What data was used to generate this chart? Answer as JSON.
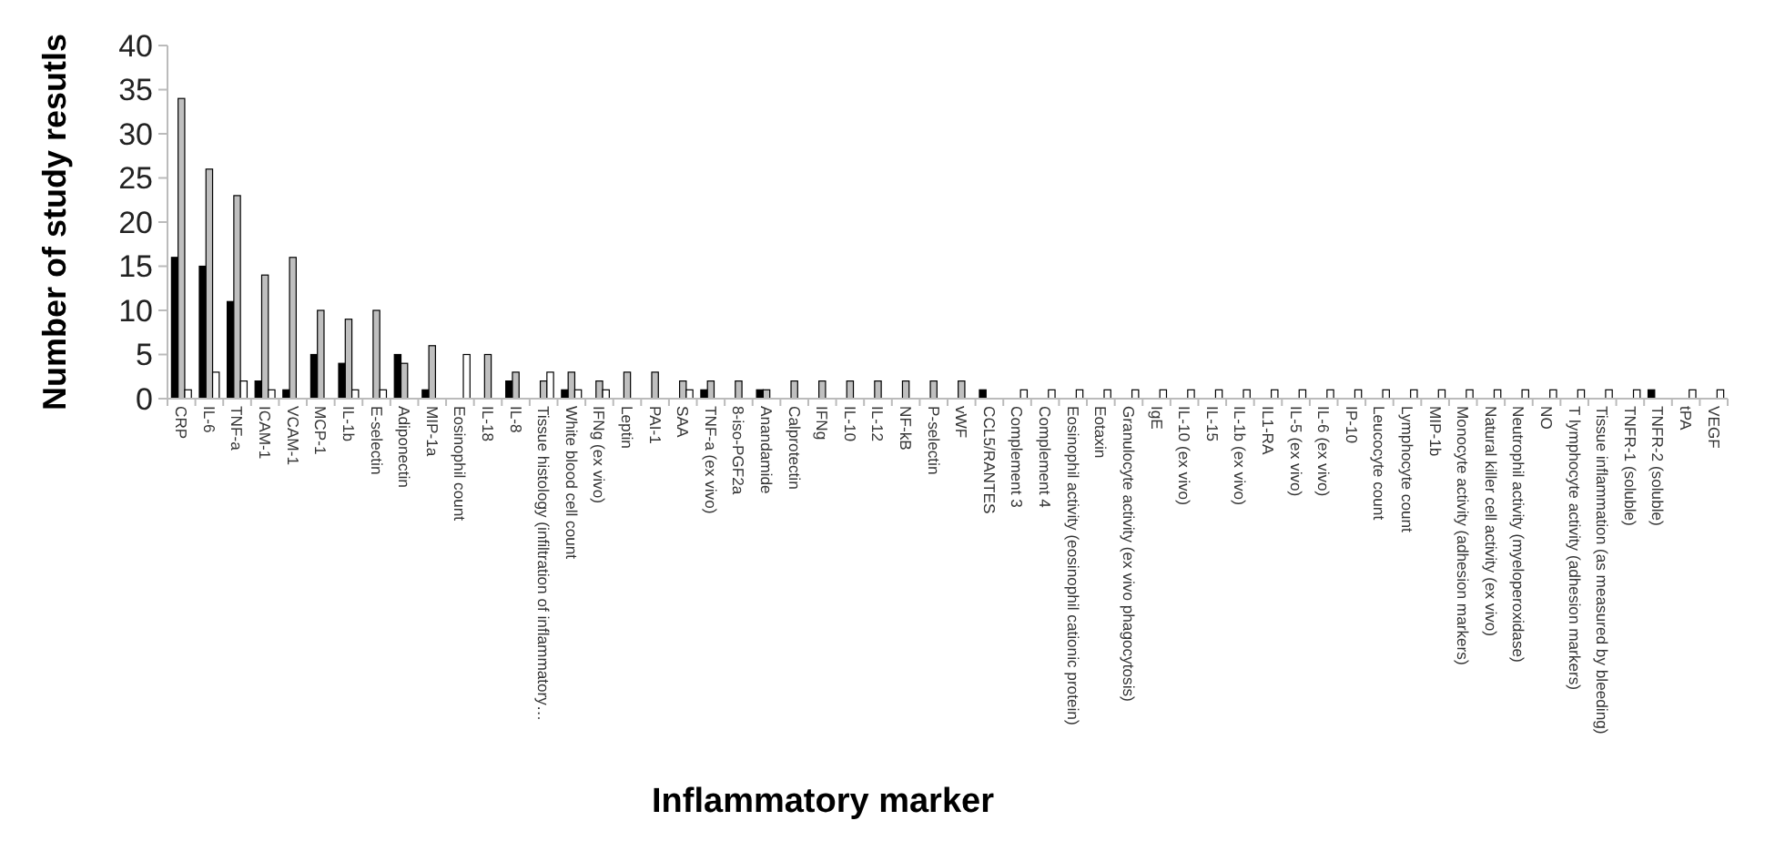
{
  "chart_data": {
    "type": "bar",
    "xlabel": "Inflammatory marker",
    "ylabel": "Number of study resutls",
    "categories": [
      "CRP",
      "IL-6",
      "TNF-a",
      "ICAM-1",
      "VCAM-1",
      "MCP-1",
      "IL-1b",
      "E-selectin",
      "Adiponectin",
      "MIP-1a",
      "Eosinophil count",
      "IL-18",
      "IL-8",
      "Tissue histology (infiltration of inflammatory…",
      "White blood cell count",
      "IFNg (ex vivo)",
      "Leptin",
      "PAI-1",
      "SAA",
      "TNF-a (ex vivo)",
      "8-iso-PGF2a",
      "Anandamide",
      "Calprotectin",
      "IFNg",
      "IL-10",
      "IL-12",
      "NF-kB",
      "P-selectin",
      "vWF",
      "CCL5/RANTES",
      "Complement 3",
      "Complement 4",
      "Eosinophil activity (eosinophil cationic protein)",
      "Eotaxin",
      "Granulocyte activity (ex vivo phagocytosis)",
      "IgE",
      "IL-10 (ex vivo)",
      "IL-15",
      "IL-1b (ex vivo)",
      "IL1-RA",
      "IL-5 (ex vivo)",
      "IL-6 (ex vivo)",
      "IP-10",
      "Leucocyte count",
      "Lymphocyte count",
      "MIP-1b",
      "Monocyte activity (adhesion markers)",
      "Natural killer cell activity (ex vivo)",
      "Neutrophil activity (myeloperoxidase)",
      "NO",
      "T lymphocyte activity (adhesion markers)",
      "Tissue inflammation (as measured by bleeding)",
      "TNFR-1 (soluble)",
      "TNFR-2 (soluble)",
      "tPA",
      "VEGF"
    ],
    "series": [
      {
        "color": "#000000",
        "values": [
          16,
          15,
          11,
          2,
          1,
          5,
          4,
          0,
          5,
          1,
          0,
          0,
          2,
          0,
          1,
          0,
          0,
          0,
          0,
          1,
          0,
          1,
          0,
          0,
          0,
          0,
          0,
          0,
          0,
          1,
          0,
          0,
          0,
          0,
          0,
          0,
          0,
          0,
          0,
          0,
          0,
          0,
          0,
          0,
          0,
          0,
          0,
          0,
          0,
          0,
          0,
          0,
          0,
          1,
          0,
          0
        ]
      },
      {
        "color": "#bfbfbf",
        "values": [
          34,
          26,
          23,
          14,
          16,
          10,
          9,
          10,
          4,
          6,
          0,
          5,
          3,
          2,
          3,
          2,
          3,
          3,
          2,
          2,
          2,
          1,
          2,
          2,
          2,
          2,
          2,
          2,
          2,
          0,
          0,
          0,
          0,
          0,
          0,
          0,
          0,
          0,
          0,
          0,
          0,
          0,
          0,
          0,
          0,
          0,
          0,
          0,
          0,
          0,
          0,
          0,
          0,
          0,
          0,
          0
        ]
      },
      {
        "color": "#ffffff",
        "values": [
          1,
          3,
          2,
          1,
          0,
          0,
          1,
          1,
          0,
          0,
          5,
          0,
          0,
          3,
          1,
          1,
          0,
          0,
          1,
          0,
          0,
          0,
          0,
          0,
          0,
          0,
          0,
          0,
          0,
          0,
          1,
          1,
          1,
          1,
          1,
          1,
          1,
          1,
          1,
          1,
          1,
          1,
          1,
          1,
          1,
          1,
          1,
          1,
          1,
          1,
          1,
          1,
          1,
          0,
          1,
          1
        ]
      }
    ],
    "ylim": [
      0,
      40
    ],
    "yticks": [
      0,
      5,
      10,
      15,
      20,
      25,
      30,
      35,
      40
    ],
    "grid": false
  }
}
